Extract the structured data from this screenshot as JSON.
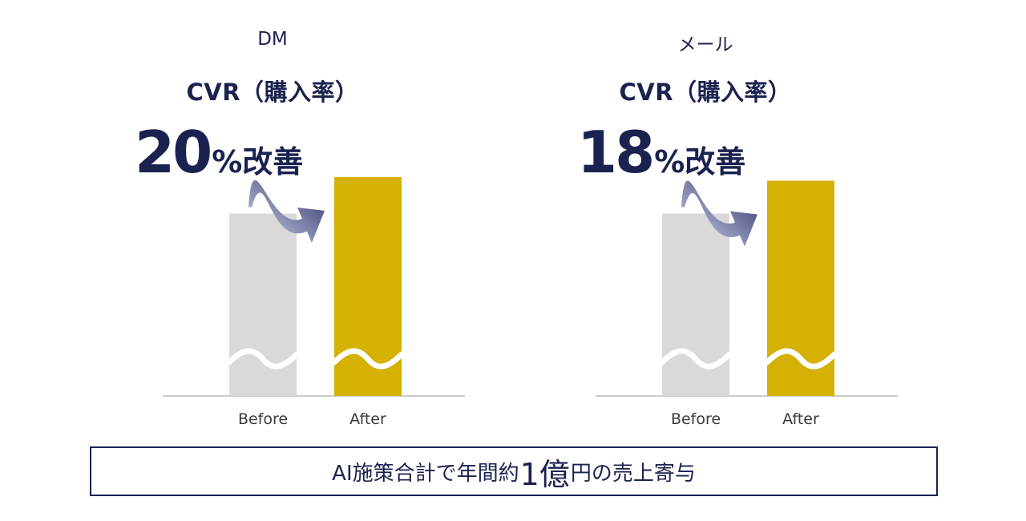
{
  "chart_data": [
    {
      "type": "bar",
      "title": "DM",
      "subtitle": "CVR（購入率）",
      "categories": [
        "Before",
        "After"
      ],
      "values": [
        100,
        120
      ],
      "annotation": {
        "number": "20",
        "unit": "%改善"
      },
      "axis_break": true,
      "ylim": [
        0,
        145
      ]
    },
    {
      "type": "bar",
      "title": "メール",
      "subtitle": "CVR（購入率）",
      "categories": [
        "Before",
        "After"
      ],
      "values": [
        100,
        118
      ],
      "annotation": {
        "number": "18",
        "unit": "%改善"
      },
      "axis_break": true,
      "ylim": [
        0,
        145
      ]
    }
  ],
  "summary": {
    "prefix": "AI施策合計で年間約",
    "highlight": "1億",
    "suffix": "円の売上寄与"
  },
  "colors": {
    "before_bar": "#d9d9d9",
    "after_bar": "#d4b104",
    "text": "#1b2250",
    "baseline": "#cccccc",
    "arrow_dark": "#2a3068",
    "arrow_light": "#d3d8ee"
  }
}
